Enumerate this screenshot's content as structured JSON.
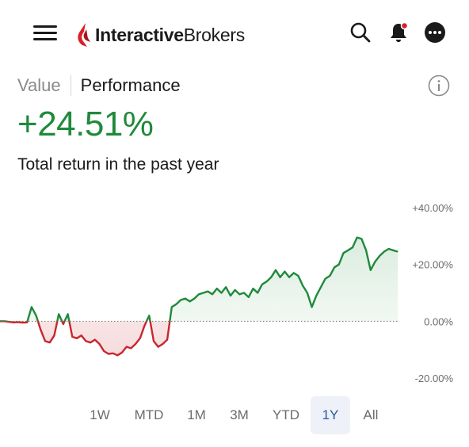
{
  "header": {
    "logo": {
      "text_bold": "Interactive",
      "text_regular": "Brokers",
      "mark_color": "#d81f2a"
    },
    "icons": [
      "menu-icon",
      "search-icon",
      "notification-bell-icon",
      "more-icon"
    ]
  },
  "tabs": [
    {
      "label": "Value",
      "active": false
    },
    {
      "label": "Performance",
      "active": true
    }
  ],
  "summary": {
    "return_value": "+24.51%",
    "caption": "Total return in the past year"
  },
  "colors": {
    "positive": "#1f8a3b",
    "negative": "#c8262d",
    "accent": "#2c5aa0"
  },
  "ranges": [
    {
      "label": "1W",
      "active": false
    },
    {
      "label": "MTD",
      "active": false
    },
    {
      "label": "1M",
      "active": false
    },
    {
      "label": "3M",
      "active": false
    },
    {
      "label": "YTD",
      "active": false
    },
    {
      "label": "1Y",
      "active": true
    },
    {
      "label": "All",
      "active": false
    }
  ],
  "chart_data": {
    "type": "line",
    "title": "",
    "xlabel": "",
    "ylabel": "",
    "ylim": [
      -20,
      40
    ],
    "y_ticks": [
      "+40.00%",
      "+20.00%",
      "0.00%",
      "-20.00%"
    ],
    "y_tick_values": [
      40,
      20,
      0,
      -20
    ],
    "baseline": 0,
    "grid": false,
    "series": [
      {
        "values": [
          0.0,
          0.0,
          -0.2,
          -0.4,
          -0.3,
          -0.5,
          -0.4,
          5.0,
          2.0,
          -3.0,
          -7.0,
          -7.5,
          -5.0,
          2.5,
          -1.0,
          2.5,
          -5.5,
          -6.0,
          -5.0,
          -7.0,
          -7.5,
          -6.5,
          -8.0,
          -10.5,
          -11.5,
          -11.3,
          -12.0,
          -11.0,
          -9.0,
          -9.5,
          -8.0,
          -6.0,
          -1.5,
          2.0,
          -7.0,
          -9.0,
          -8.0,
          -6.5,
          5.0,
          6.0,
          7.5,
          8.0,
          7.0,
          8.0,
          9.5,
          10.0,
          10.5,
          9.5,
          11.5,
          10.0,
          12.0,
          9.0,
          11.0,
          9.5,
          10.0,
          8.5,
          11.5,
          10.0,
          13.0,
          14.0,
          15.5,
          18.0,
          15.5,
          17.5,
          15.5,
          17.0,
          16.0,
          12.5,
          10.0,
          5.0,
          9.0,
          12.0,
          15.0,
          16.0,
          19.0,
          20.0,
          24.0,
          25.0,
          26.0,
          29.5,
          29.0,
          25.0,
          18.0,
          21.0,
          23.0,
          24.5,
          25.5,
          25.0,
          24.5
        ]
      }
    ]
  }
}
